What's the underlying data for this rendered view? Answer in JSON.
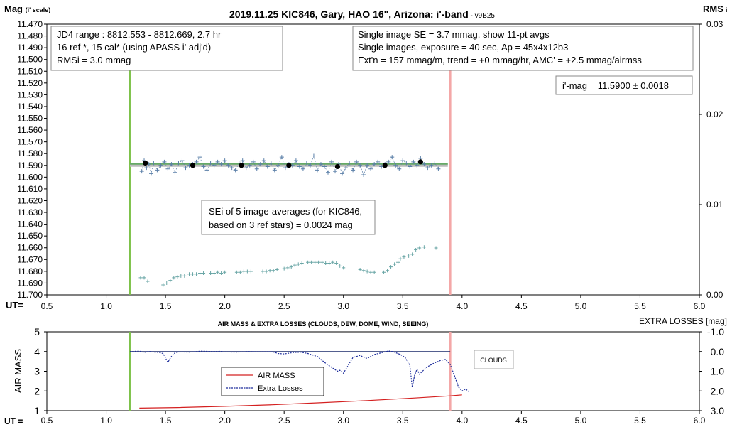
{
  "chart_data": [
    {
      "type": "scatter",
      "title": "2019.11.25 KIC846, Gary, HAO 16\", Arizona: i'-band",
      "title_suffix": " - v9B25",
      "ylabel_main": "Mag",
      "ylabel_sub": "(i' scale)",
      "y2label_main": "RMS",
      "y2label_sub": "i",
      "xlabel": "UT=",
      "xlim": [
        0.5,
        6.0
      ],
      "ylim": [
        11.47,
        11.7
      ],
      "y_reversed": true,
      "y2lim": [
        0.0,
        0.03
      ],
      "x_ticks": [
        "0.5",
        "1.0",
        "1.5",
        "2.0",
        "2.5",
        "3.0",
        "3.5",
        "4.0",
        "4.5",
        "5.0",
        "5.5",
        "6.0"
      ],
      "y_ticks": [
        "11.470",
        "11.480",
        "11.490",
        "11.500",
        "11.510",
        "11.520",
        "11.530",
        "11.540",
        "11.550",
        "11.560",
        "11.570",
        "11.580",
        "11.590",
        "11.600",
        "11.610",
        "11.620",
        "11.630",
        "11.640",
        "11.650",
        "11.660",
        "11.670",
        "11.680",
        "11.690",
        "11.700"
      ],
      "y2_ticks": [
        "0.03",
        "0.02",
        "0.01",
        "0.00"
      ],
      "colors": {
        "single": "#5a7fa8",
        "avg": "#000000",
        "fit": "#66aa66",
        "mean": "#bbbbbb",
        "rms": "#6aa6a6",
        "start_line": "#7dc24a",
        "end_line": "#f4a7a7"
      },
      "start_line_x": 1.2,
      "end_line_x": 3.9,
      "mean_mag": 11.59,
      "fit_line": {
        "x": [
          1.2,
          3.88
        ],
        "y": [
          11.5888,
          11.5888
        ]
      },
      "single_images": {
        "x": [
          1.3,
          1.32,
          1.34,
          1.36,
          1.38,
          1.4,
          1.43,
          1.46,
          1.49,
          1.52,
          1.55,
          1.58,
          1.61,
          1.64,
          1.67,
          1.7,
          1.73,
          1.76,
          1.79,
          1.82,
          1.85,
          1.88,
          1.91,
          1.94,
          1.97,
          2.0,
          2.03,
          2.06,
          2.09,
          2.12,
          2.15,
          2.18,
          2.21,
          2.24,
          2.27,
          2.3,
          2.33,
          2.36,
          2.39,
          2.42,
          2.45,
          2.48,
          2.51,
          2.54,
          2.57,
          2.6,
          2.63,
          2.66,
          2.69,
          2.72,
          2.75,
          2.78,
          2.81,
          2.84,
          2.87,
          2.9,
          2.93,
          2.96,
          2.99,
          3.02,
          3.05,
          3.08,
          3.11,
          3.14,
          3.17,
          3.2,
          3.23,
          3.26,
          3.29,
          3.32,
          3.35,
          3.38,
          3.41,
          3.44,
          3.47,
          3.5,
          3.53,
          3.56,
          3.59,
          3.62,
          3.65,
          3.68,
          3.71,
          3.74,
          3.77,
          3.8
        ],
        "y": [
          11.595,
          11.586,
          11.592,
          11.589,
          11.597,
          11.588,
          11.594,
          11.59,
          11.587,
          11.593,
          11.589,
          11.596,
          11.588,
          11.586,
          11.592,
          11.59,
          11.589,
          11.587,
          11.583,
          11.591,
          11.594,
          11.588,
          11.59,
          11.587,
          11.589,
          11.586,
          11.59,
          11.592,
          11.594,
          11.588,
          11.586,
          11.592,
          11.59,
          11.587,
          11.593,
          11.589,
          11.586,
          11.591,
          11.588,
          11.594,
          11.59,
          11.583,
          11.592,
          11.589,
          11.59,
          11.586,
          11.591,
          11.593,
          11.588,
          11.59,
          11.582,
          11.594,
          11.589,
          11.591,
          11.596,
          11.587,
          11.595,
          11.589,
          11.597,
          11.592,
          11.588,
          11.594,
          11.587,
          11.59,
          11.598,
          11.59,
          11.593,
          11.589,
          11.587,
          11.591,
          11.589,
          11.587,
          11.583,
          11.59,
          11.593,
          11.586,
          11.588,
          11.591,
          11.587,
          11.59,
          11.584,
          11.589,
          11.592,
          11.59,
          11.588,
          11.593
        ]
      },
      "averages": {
        "x": [
          1.33,
          1.73,
          2.14,
          2.54,
          2.95,
          3.35,
          3.65
        ],
        "y": [
          11.588,
          11.59,
          11.59,
          11.59,
          11.591,
          11.59,
          11.587
        ]
      },
      "rms_points": {
        "x": [
          1.29,
          1.32,
          1.35,
          1.48,
          1.51,
          1.54,
          1.57,
          1.6,
          1.63,
          1.66,
          1.7,
          1.73,
          1.76,
          1.79,
          1.82,
          1.88,
          1.91,
          1.94,
          1.97,
          2.0,
          2.1,
          2.13,
          2.16,
          2.19,
          2.22,
          2.32,
          2.35,
          2.38,
          2.41,
          2.44,
          2.5,
          2.53,
          2.56,
          2.59,
          2.62,
          2.65,
          2.7,
          2.73,
          2.76,
          2.79,
          2.82,
          2.85,
          2.88,
          2.91,
          2.94,
          2.97,
          3.0,
          3.14,
          3.17,
          3.2,
          3.23,
          3.26,
          3.34,
          3.37,
          3.4,
          3.43,
          3.46,
          3.48,
          3.51,
          3.55,
          3.58,
          3.61,
          3.64,
          3.68,
          3.78
        ],
        "y": [
          0.0019,
          0.0019,
          0.0015,
          0.0011,
          0.0013,
          0.0016,
          0.0019,
          0.002,
          0.0021,
          0.0021,
          0.0023,
          0.0023,
          0.0023,
          0.0024,
          0.0024,
          0.0024,
          0.0024,
          0.0025,
          0.0024,
          0.0025,
          0.0025,
          0.0025,
          0.0026,
          0.0026,
          0.0026,
          0.0026,
          0.0026,
          0.0027,
          0.0027,
          0.0028,
          0.0029,
          0.003,
          0.0031,
          0.0033,
          0.0034,
          0.0035,
          0.0036,
          0.0036,
          0.0036,
          0.0036,
          0.0036,
          0.0035,
          0.0035,
          0.0036,
          0.0035,
          0.0032,
          0.003,
          0.0028,
          0.0027,
          0.0026,
          0.0025,
          0.0025,
          0.0025,
          0.0027,
          0.0031,
          0.0034,
          0.0036,
          0.004,
          0.0042,
          0.0043,
          0.0045,
          0.005,
          0.0052,
          0.0053,
          0.0052
        ]
      },
      "info_box_left": [
        "JD4 range : 8812.553 - 8812.669, 2.7  hr",
        "16 ref *, 15 cal* (using APASS i' adj'd)",
        "RMSi = 3.0 mmag"
      ],
      "info_box_right": [
        "Single image SE = 3.7 mmag, show 11-pt avgs",
        "Single images, exposure = 40 sec, Ap = 45x4x12b3",
        "Ext'n = 157 mmag/m, trend = +0 mmag/hr, AMC' = +2.5 mmag/airmss"
      ],
      "result_box": "i'-mag = 11.5900 ± 0.0018",
      "sei_box": [
        "SEi of 5 image-averages (for KIC846,",
        "based on 3 ref stars) = 0.0024 mag"
      ]
    },
    {
      "type": "line",
      "title": "AIR MASS & EXTRA LOSSES (CLOUDS, DEW, DOME, WIND, SEEING)",
      "ylabel": "AIR MASS",
      "y2label": "EXTRA LOSSES [mag]",
      "xlabel": "UT =",
      "xlim": [
        0.5,
        6.0
      ],
      "ylim": [
        1,
        5
      ],
      "y2lim": [
        -1.0,
        3.0
      ],
      "y2_reversed": true,
      "x_ticks": [
        "0.5",
        "1.0",
        "1.5",
        "2.0",
        "2.5",
        "3.0",
        "3.5",
        "4.0",
        "4.5",
        "5.0",
        "5.5",
        "6.0"
      ],
      "y_ticks": [
        "5",
        "4",
        "3",
        "2",
        "1"
      ],
      "y2_ticks": [
        "-1.0",
        "0.0",
        "1.0",
        "2.0",
        "3.0"
      ],
      "colors": {
        "airmass": "#d42020",
        "losses": "#1a2a9a",
        "zero": "#1a2a6a"
      },
      "annotation": "CLOUDS",
      "series": [
        {
          "name": "AIR MASS",
          "x": [
            1.28,
            1.6,
            2.0,
            2.4,
            2.8,
            3.2,
            3.6,
            3.9,
            4.0
          ],
          "y": [
            1.13,
            1.16,
            1.22,
            1.3,
            1.4,
            1.51,
            1.64,
            1.75,
            1.8
          ]
        },
        {
          "name": "Extra Losses",
          "x": [
            1.2,
            1.28,
            1.32,
            1.36,
            1.4,
            1.44,
            1.48,
            1.52,
            1.55,
            1.58,
            1.62,
            1.7,
            1.8,
            1.9,
            1.96,
            2.0,
            2.1,
            2.2,
            2.3,
            2.4,
            2.45,
            2.5,
            2.58,
            2.64,
            2.7,
            2.78,
            2.84,
            2.9,
            2.95,
            2.97,
            3.0,
            3.04,
            3.08,
            3.14,
            3.2,
            3.26,
            3.33,
            3.38,
            3.42,
            3.48,
            3.52,
            3.56,
            3.58,
            3.6,
            3.62,
            3.64,
            3.7,
            3.76,
            3.82,
            3.86,
            3.9,
            3.94,
            3.97,
            4.0,
            4.03,
            4.06
          ],
          "y": [
            0.0,
            -0.02,
            0.05,
            -0.01,
            0.03,
            0.04,
            0.1,
            0.55,
            0.25,
            0.06,
            0.02,
            0.03,
            -0.02,
            0.0,
            -0.01,
            0.02,
            0.03,
            0.0,
            0.02,
            0.01,
            0.1,
            0.12,
            0.05,
            0.03,
            0.1,
            0.25,
            0.55,
            0.8,
            1.0,
            0.95,
            1.1,
            0.7,
            0.3,
            0.2,
            0.35,
            0.15,
            0.05,
            -0.03,
            0.01,
            0.15,
            0.3,
            0.7,
            1.8,
            1.2,
            0.9,
            1.15,
            0.8,
            0.6,
            0.45,
            0.4,
            0.65,
            1.3,
            1.8,
            2.0,
            1.9,
            2.05
          ]
        }
      ]
    }
  ]
}
